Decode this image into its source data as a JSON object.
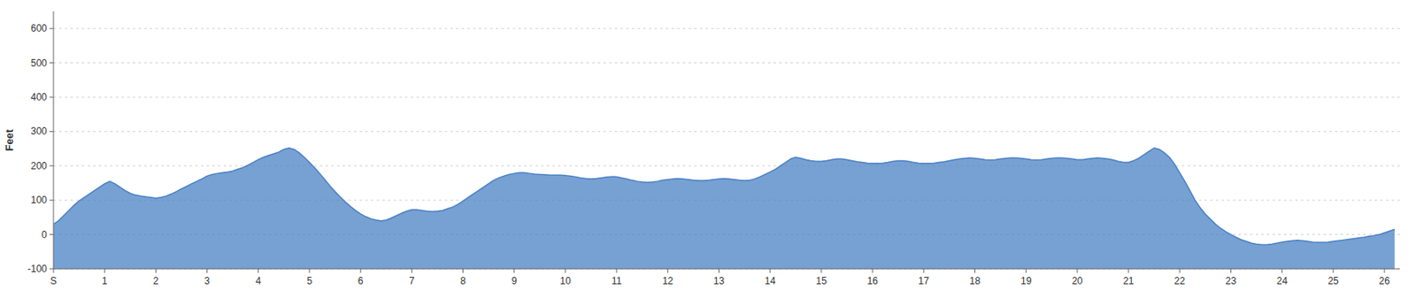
{
  "chart_data": {
    "type": "area",
    "y_label": "Feet",
    "color": "#4a80c4",
    "grid": true,
    "xlim": [
      0,
      26.3
    ],
    "xticks": [
      {
        "value": 0,
        "label": "S"
      },
      1,
      2,
      3,
      4,
      5,
      6,
      7,
      8,
      9,
      10,
      11,
      12,
      13,
      14,
      15,
      16,
      17,
      18,
      19,
      20,
      21,
      22,
      23,
      24,
      25,
      26
    ],
    "ylim": [
      -100,
      650
    ],
    "yticks": [
      -100,
      0,
      100,
      200,
      300,
      400,
      500,
      600
    ],
    "x": [
      0.0,
      0.1,
      0.2,
      0.3,
      0.4,
      0.5,
      0.6,
      0.7,
      0.8,
      0.9,
      1.0,
      1.1,
      1.2,
      1.3,
      1.4,
      1.5,
      1.6,
      1.7,
      1.8,
      1.9,
      2.0,
      2.1,
      2.2,
      2.3,
      2.4,
      2.5,
      2.6,
      2.7,
      2.8,
      2.9,
      3.0,
      3.1,
      3.2,
      3.3,
      3.4,
      3.5,
      3.6,
      3.7,
      3.8,
      3.9,
      4.0,
      4.1,
      4.2,
      4.3,
      4.4,
      4.5,
      4.6,
      4.7,
      4.8,
      4.9,
      5.0,
      5.1,
      5.2,
      5.3,
      5.4,
      5.5,
      5.6,
      5.7,
      5.8,
      5.9,
      6.0,
      6.1,
      6.2,
      6.3,
      6.4,
      6.5,
      6.6,
      6.7,
      6.8,
      6.9,
      7.0,
      7.1,
      7.2,
      7.3,
      7.4,
      7.5,
      7.6,
      7.7,
      7.8,
      7.9,
      8.0,
      8.1,
      8.2,
      8.3,
      8.4,
      8.5,
      8.6,
      8.7,
      8.8,
      8.9,
      9.0,
      9.1,
      9.2,
      9.3,
      9.4,
      9.5,
      9.6,
      9.7,
      9.8,
      9.9,
      10.0,
      10.1,
      10.2,
      10.3,
      10.4,
      10.5,
      10.6,
      10.7,
      10.8,
      10.9,
      11.0,
      11.1,
      11.2,
      11.3,
      11.4,
      11.5,
      11.6,
      11.7,
      11.8,
      11.9,
      12.0,
      12.1,
      12.2,
      12.3,
      12.4,
      12.5,
      12.6,
      12.7,
      12.8,
      12.9,
      13.0,
      13.1,
      13.2,
      13.3,
      13.4,
      13.5,
      13.6,
      13.7,
      13.8,
      13.9,
      14.0,
      14.1,
      14.2,
      14.3,
      14.4,
      14.5,
      14.6,
      14.7,
      14.8,
      14.9,
      15.0,
      15.1,
      15.2,
      15.3,
      15.4,
      15.5,
      15.6,
      15.7,
      15.8,
      15.9,
      16.0,
      16.1,
      16.2,
      16.3,
      16.4,
      16.5,
      16.6,
      16.7,
      16.8,
      16.9,
      17.0,
      17.1,
      17.2,
      17.3,
      17.4,
      17.5,
      17.6,
      17.7,
      17.8,
      17.9,
      18.0,
      18.1,
      18.2,
      18.3,
      18.4,
      18.5,
      18.6,
      18.7,
      18.8,
      18.9,
      19.0,
      19.1,
      19.2,
      19.3,
      19.4,
      19.5,
      19.6,
      19.7,
      19.8,
      19.9,
      20.0,
      20.1,
      20.2,
      20.3,
      20.4,
      20.5,
      20.6,
      20.7,
      20.8,
      20.9,
      21.0,
      21.1,
      21.2,
      21.3,
      21.4,
      21.5,
      21.6,
      21.7,
      21.8,
      21.9,
      22.0,
      22.1,
      22.2,
      22.3,
      22.4,
      22.5,
      22.6,
      22.7,
      22.8,
      22.9,
      23.0,
      23.1,
      23.2,
      23.3,
      23.4,
      23.5,
      23.6,
      23.7,
      23.8,
      23.9,
      24.0,
      24.1,
      24.2,
      24.3,
      24.4,
      24.5,
      24.6,
      24.7,
      24.8,
      24.9,
      25.0,
      25.1,
      25.2,
      25.3,
      25.4,
      25.5,
      25.6,
      25.7,
      25.8,
      25.9,
      26.0,
      26.2
    ],
    "values": [
      30,
      40,
      55,
      70,
      85,
      98,
      108,
      118,
      128,
      138,
      148,
      155,
      148,
      138,
      128,
      120,
      115,
      112,
      110,
      108,
      106,
      108,
      112,
      118,
      125,
      133,
      140,
      148,
      155,
      162,
      170,
      175,
      178,
      180,
      182,
      185,
      190,
      195,
      202,
      210,
      218,
      225,
      230,
      235,
      240,
      248,
      252,
      248,
      238,
      225,
      210,
      195,
      178,
      160,
      142,
      125,
      110,
      95,
      82,
      70,
      60,
      52,
      46,
      42,
      40,
      42,
      48,
      55,
      62,
      68,
      72,
      72,
      70,
      68,
      67,
      68,
      70,
      75,
      80,
      88,
      97,
      108,
      118,
      128,
      138,
      148,
      158,
      165,
      170,
      175,
      178,
      180,
      180,
      178,
      176,
      175,
      174,
      173,
      173,
      173,
      172,
      170,
      168,
      165,
      163,
      162,
      163,
      165,
      167,
      168,
      168,
      165,
      162,
      158,
      155,
      153,
      152,
      153,
      155,
      158,
      160,
      162,
      163,
      162,
      160,
      158,
      157,
      157,
      158,
      160,
      162,
      163,
      162,
      160,
      158,
      157,
      158,
      162,
      168,
      175,
      182,
      190,
      200,
      210,
      220,
      225,
      222,
      218,
      215,
      213,
      213,
      215,
      218,
      220,
      220,
      218,
      215,
      212,
      210,
      208,
      207,
      207,
      208,
      210,
      213,
      215,
      215,
      213,
      210,
      208,
      207,
      207,
      208,
      210,
      212,
      215,
      218,
      220,
      222,
      223,
      222,
      220,
      218,
      217,
      218,
      220,
      222,
      223,
      223,
      222,
      220,
      218,
      217,
      218,
      220,
      222,
      223,
      223,
      222,
      220,
      218,
      218,
      220,
      222,
      223,
      222,
      220,
      217,
      213,
      210,
      210,
      215,
      222,
      232,
      242,
      252,
      248,
      238,
      225,
      205,
      180,
      155,
      128,
      100,
      78,
      60,
      45,
      30,
      18,
      8,
      0,
      -8,
      -15,
      -20,
      -25,
      -28,
      -30,
      -30,
      -28,
      -25,
      -22,
      -20,
      -18,
      -17,
      -18,
      -20,
      -22,
      -23,
      -23,
      -22,
      -20,
      -18,
      -16,
      -14,
      -12,
      -10,
      -8,
      -5,
      -3,
      0,
      5,
      15
    ]
  }
}
